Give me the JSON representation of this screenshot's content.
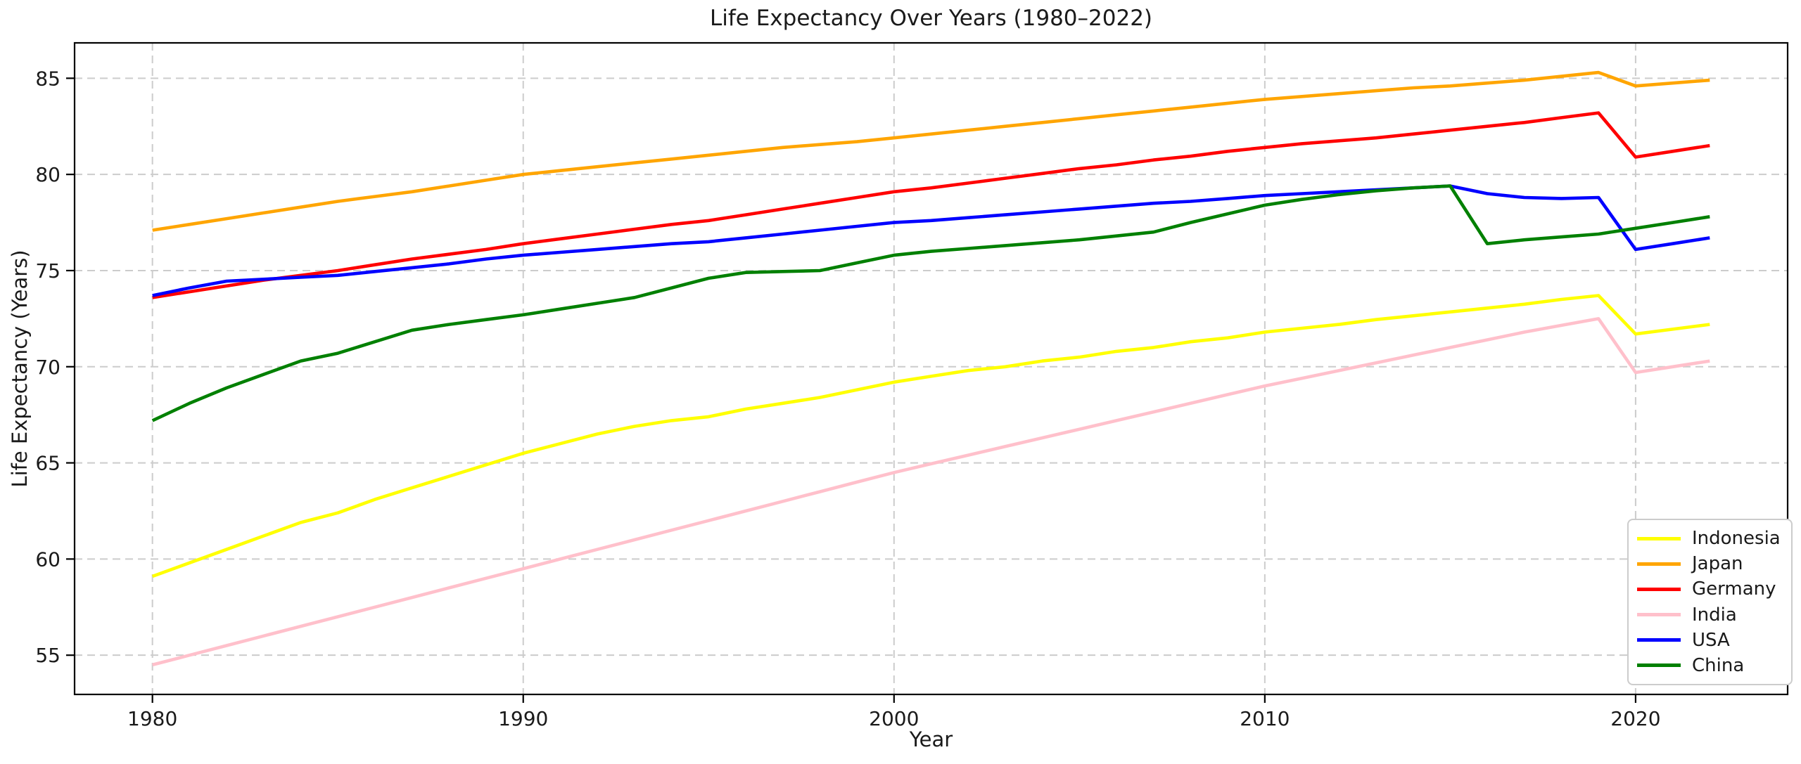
{
  "figure": {
    "background": "#ffffff",
    "text_color": "#1a1a1a",
    "spine_color": "#000000",
    "grid_color": "#cccccc"
  },
  "chart_data": {
    "type": "line",
    "title": "Life Expectancy Over Years (1980–2022)",
    "xlabel": "Year",
    "ylabel": "Life Expectancy (Years)",
    "grid": {
      "visible": true,
      "style": "dashed",
      "color": "#cccccc"
    },
    "legend": {
      "position": "lower right",
      "items": [
        "Indonesia",
        "Japan",
        "Germany",
        "India",
        "USA",
        "China"
      ]
    },
    "xticks": [
      1980,
      1990,
      2000,
      2010,
      2020
    ],
    "yticks": [
      55,
      60,
      65,
      70,
      75,
      80,
      85
    ],
    "xlim": [
      1977.9,
      2024.1
    ],
    "ylim": [
      52.96,
      86.84
    ],
    "x": [
      1980,
      1981,
      1982,
      1983,
      1984,
      1985,
      1986,
      1987,
      1988,
      1989,
      1990,
      1991,
      1992,
      1993,
      1994,
      1995,
      1996,
      1997,
      1998,
      1999,
      2000,
      2001,
      2002,
      2003,
      2004,
      2005,
      2006,
      2007,
      2008,
      2009,
      2010,
      2011,
      2012,
      2013,
      2014,
      2015,
      2016,
      2017,
      2018,
      2019,
      2020,
      2021,
      2022
    ],
    "series": [
      {
        "name": "Indonesia",
        "color": "#ffff00",
        "values": [
          59.1,
          59.8,
          60.5,
          61.2,
          61.9,
          62.4,
          63.1,
          63.7,
          64.3,
          64.9,
          65.5,
          66.0,
          66.5,
          66.9,
          67.2,
          67.4,
          67.8,
          68.1,
          68.4,
          68.8,
          69.2,
          69.5,
          69.8,
          70.0,
          70.3,
          70.5,
          70.8,
          71.0,
          71.3,
          71.5,
          71.8,
          72.0,
          72.2,
          72.45,
          72.65,
          72.85,
          73.05,
          73.25,
          73.5,
          73.7,
          71.7,
          71.95,
          72.2
        ]
      },
      {
        "name": "Japan",
        "color": "#ffa500",
        "values": [
          77.1,
          77.4,
          77.7,
          78.0,
          78.3,
          78.6,
          78.85,
          79.1,
          79.4,
          79.7,
          80.0,
          80.2,
          80.4,
          80.6,
          80.8,
          81.0,
          81.2,
          81.4,
          81.55,
          81.7,
          81.9,
          82.1,
          82.3,
          82.5,
          82.7,
          82.9,
          83.1,
          83.3,
          83.5,
          83.7,
          83.9,
          84.05,
          84.2,
          84.35,
          84.5,
          84.6,
          84.75,
          84.9,
          85.1,
          85.3,
          84.6,
          84.75,
          84.9
        ]
      },
      {
        "name": "Germany",
        "color": "#ff0000",
        "values": [
          73.6,
          73.9,
          74.2,
          74.5,
          74.75,
          75.0,
          75.3,
          75.6,
          75.85,
          76.1,
          76.4,
          76.65,
          76.9,
          77.15,
          77.4,
          77.6,
          77.9,
          78.2,
          78.5,
          78.8,
          79.1,
          79.3,
          79.55,
          79.8,
          80.05,
          80.3,
          80.5,
          80.75,
          80.95,
          81.2,
          81.4,
          81.6,
          81.75,
          81.9,
          82.1,
          82.3,
          82.5,
          82.7,
          82.95,
          83.2,
          80.9,
          81.2,
          81.5
        ]
      },
      {
        "name": "India",
        "color": "#ffc0cb",
        "values": [
          54.5,
          55.0,
          55.5,
          56.0,
          56.5,
          57.0,
          57.5,
          58.0,
          58.5,
          59.0,
          59.5,
          60.0,
          60.5,
          61.0,
          61.5,
          62.0,
          62.5,
          63.0,
          63.5,
          64.0,
          64.5,
          64.95,
          65.4,
          65.85,
          66.3,
          66.75,
          67.2,
          67.65,
          68.1,
          68.55,
          69.0,
          69.4,
          69.8,
          70.2,
          70.6,
          71.0,
          71.4,
          71.8,
          72.15,
          72.5,
          69.7,
          70.0,
          70.3
        ]
      },
      {
        "name": "USA",
        "color": "#0000ff",
        "values": [
          73.7,
          74.1,
          74.45,
          74.55,
          74.65,
          74.75,
          74.95,
          75.15,
          75.35,
          75.6,
          75.8,
          75.95,
          76.1,
          76.25,
          76.4,
          76.5,
          76.7,
          76.9,
          77.1,
          77.3,
          77.5,
          77.6,
          77.75,
          77.9,
          78.05,
          78.2,
          78.35,
          78.5,
          78.6,
          78.75,
          78.9,
          79.0,
          79.1,
          79.2,
          79.3,
          79.4,
          79.0,
          78.8,
          78.75,
          78.8,
          76.1,
          76.4,
          76.7
        ]
      },
      {
        "name": "China",
        "color": "#008000",
        "values": [
          67.2,
          68.1,
          68.9,
          69.6,
          70.3,
          70.7,
          71.3,
          71.9,
          72.2,
          72.45,
          72.7,
          73.0,
          73.3,
          73.6,
          74.1,
          74.6,
          74.9,
          74.95,
          75.0,
          75.4,
          75.8,
          76.0,
          76.15,
          76.3,
          76.45,
          76.6,
          76.8,
          77.0,
          77.5,
          77.95,
          78.4,
          78.7,
          78.95,
          79.15,
          79.3,
          79.4,
          76.4,
          76.6,
          76.75,
          76.9,
          77.2,
          77.5,
          77.8
        ]
      }
    ]
  }
}
